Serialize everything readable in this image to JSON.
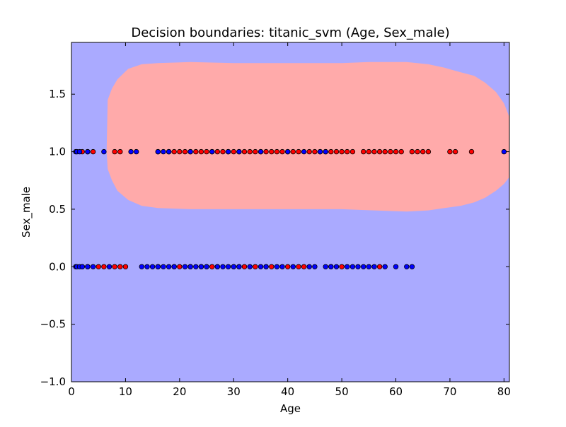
{
  "chart_data": {
    "type": "scatter",
    "title": "Decision boundaries: titanic_svm (Age, Sex_male)",
    "xlabel": "Age",
    "ylabel": "Sex_male",
    "xlim": [
      0,
      81
    ],
    "ylim": [
      -1.0,
      1.95
    ],
    "xticks": [
      0,
      10,
      20,
      30,
      40,
      50,
      60,
      70,
      80
    ],
    "xtick_labels": [
      "0",
      "10",
      "20",
      "30",
      "40",
      "50",
      "60",
      "70",
      "80"
    ],
    "yticks": [
      -1.0,
      -0.5,
      0.0,
      0.5,
      1.0,
      1.5
    ],
    "ytick_labels": [
      "−1.0",
      "−0.5",
      "0.0",
      "0.5",
      "1.0",
      "1.5"
    ],
    "grid": false,
    "colors": {
      "background_region": "#aaaaff",
      "positive_region": "#ffaaaa",
      "class_red": "#ff0000",
      "class_blue": "#0000ff"
    },
    "positive_region_outline": [
      [
        6.5,
        1.0
      ],
      [
        6.7,
        1.45
      ],
      [
        7.5,
        1.55
      ],
      [
        8.5,
        1.63
      ],
      [
        10.5,
        1.72
      ],
      [
        13,
        1.76
      ],
      [
        16,
        1.77
      ],
      [
        22,
        1.78
      ],
      [
        30,
        1.77
      ],
      [
        40,
        1.77
      ],
      [
        50,
        1.77
      ],
      [
        55,
        1.78
      ],
      [
        62,
        1.78
      ],
      [
        66,
        1.76
      ],
      [
        69,
        1.73
      ],
      [
        72,
        1.69
      ],
      [
        74.5,
        1.66
      ],
      [
        76.5,
        1.6
      ],
      [
        78.5,
        1.52
      ],
      [
        80,
        1.42
      ],
      [
        81,
        1.3
      ],
      [
        81,
        0.78
      ],
      [
        80,
        0.72
      ],
      [
        78.5,
        0.66
      ],
      [
        76.5,
        0.6
      ],
      [
        74.5,
        0.56
      ],
      [
        72,
        0.53
      ],
      [
        69,
        0.51
      ],
      [
        66,
        0.49
      ],
      [
        62,
        0.48
      ],
      [
        56,
        0.49
      ],
      [
        50,
        0.5
      ],
      [
        40,
        0.5
      ],
      [
        30,
        0.5
      ],
      [
        22,
        0.5
      ],
      [
        16,
        0.51
      ],
      [
        13,
        0.53
      ],
      [
        10.5,
        0.58
      ],
      [
        8.5,
        0.66
      ],
      [
        7.5,
        0.75
      ],
      [
        6.7,
        0.85
      ]
    ],
    "series": [
      {
        "color": "red",
        "points": [
          [
            2,
            1
          ],
          [
            3,
            1
          ],
          [
            4,
            1
          ],
          [
            8,
            1
          ],
          [
            9,
            1
          ],
          [
            16,
            1
          ],
          [
            18,
            1
          ],
          [
            19,
            1
          ],
          [
            20,
            1
          ],
          [
            21,
            1
          ],
          [
            22,
            1
          ],
          [
            23,
            1
          ],
          [
            24,
            1
          ],
          [
            25,
            1
          ],
          [
            26,
            1
          ],
          [
            27,
            1
          ],
          [
            28,
            1
          ],
          [
            29,
            1
          ],
          [
            30,
            1
          ],
          [
            31,
            1
          ],
          [
            32,
            1
          ],
          [
            33,
            1
          ],
          [
            34,
            1
          ],
          [
            35,
            1
          ],
          [
            36,
            1
          ],
          [
            37,
            1
          ],
          [
            38,
            1
          ],
          [
            39,
            1
          ],
          [
            40,
            1
          ],
          [
            41,
            1
          ],
          [
            42,
            1
          ],
          [
            44,
            1
          ],
          [
            45,
            1
          ],
          [
            46,
            1
          ],
          [
            47,
            1
          ],
          [
            48,
            1
          ],
          [
            49,
            1
          ],
          [
            50,
            1
          ],
          [
            51,
            1
          ],
          [
            52,
            1
          ],
          [
            54,
            1
          ],
          [
            55,
            1
          ],
          [
            56,
            1
          ],
          [
            57,
            1
          ],
          [
            58,
            1
          ],
          [
            59,
            1
          ],
          [
            60,
            1
          ],
          [
            61,
            1
          ],
          [
            63,
            1
          ],
          [
            64,
            1
          ],
          [
            65,
            1
          ],
          [
            66,
            1
          ],
          [
            70,
            1
          ],
          [
            71,
            1
          ],
          [
            74,
            1
          ],
          [
            2,
            0
          ],
          [
            3,
            0
          ],
          [
            5,
            0
          ],
          [
            6,
            0
          ],
          [
            8,
            0
          ],
          [
            9,
            0
          ],
          [
            10,
            0
          ],
          [
            16,
            0
          ],
          [
            19,
            0
          ],
          [
            20,
            0
          ],
          [
            22,
            0
          ],
          [
            24,
            0
          ],
          [
            25,
            0
          ],
          [
            26,
            0
          ],
          [
            27,
            0
          ],
          [
            30,
            0
          ],
          [
            31,
            0
          ],
          [
            32,
            0
          ],
          [
            34,
            0
          ],
          [
            36,
            0
          ],
          [
            37,
            0
          ],
          [
            40,
            0
          ],
          [
            42,
            0
          ],
          [
            43,
            0
          ],
          [
            48,
            0
          ],
          [
            50,
            0
          ],
          [
            57,
            0
          ]
        ]
      },
      {
        "color": "blue",
        "points": [
          [
            0.8,
            1
          ],
          [
            1,
            1
          ],
          [
            1.5,
            1
          ],
          [
            3,
            1
          ],
          [
            6,
            1
          ],
          [
            11,
            1
          ],
          [
            12,
            1
          ],
          [
            16,
            1
          ],
          [
            17,
            1
          ],
          [
            18,
            1
          ],
          [
            22,
            1
          ],
          [
            26,
            1
          ],
          [
            29,
            1
          ],
          [
            31,
            1
          ],
          [
            35,
            1
          ],
          [
            40,
            1
          ],
          [
            43,
            1
          ],
          [
            46,
            1
          ],
          [
            47,
            1
          ],
          [
            80,
            1
          ],
          [
            0.8,
            0
          ],
          [
            1,
            0
          ],
          [
            1.5,
            0
          ],
          [
            2,
            0
          ],
          [
            3,
            0
          ],
          [
            4,
            0
          ],
          [
            7,
            0
          ],
          [
            13,
            0
          ],
          [
            14,
            0
          ],
          [
            15,
            0
          ],
          [
            16,
            0
          ],
          [
            17,
            0
          ],
          [
            18,
            0
          ],
          [
            19,
            0
          ],
          [
            21,
            0
          ],
          [
            22,
            0
          ],
          [
            23,
            0
          ],
          [
            24,
            0
          ],
          [
            25,
            0
          ],
          [
            27,
            0
          ],
          [
            28,
            0
          ],
          [
            29,
            0
          ],
          [
            30,
            0
          ],
          [
            31,
            0
          ],
          [
            33,
            0
          ],
          [
            35,
            0
          ],
          [
            36,
            0
          ],
          [
            38,
            0
          ],
          [
            39,
            0
          ],
          [
            41,
            0
          ],
          [
            44,
            0
          ],
          [
            45,
            0
          ],
          [
            47,
            0
          ],
          [
            48,
            0
          ],
          [
            49,
            0
          ],
          [
            51,
            0
          ],
          [
            52,
            0
          ],
          [
            53,
            0
          ],
          [
            54,
            0
          ],
          [
            55,
            0
          ],
          [
            56,
            0
          ],
          [
            58,
            0
          ],
          [
            60,
            0
          ],
          [
            62,
            0
          ],
          [
            63,
            0
          ]
        ]
      }
    ]
  }
}
